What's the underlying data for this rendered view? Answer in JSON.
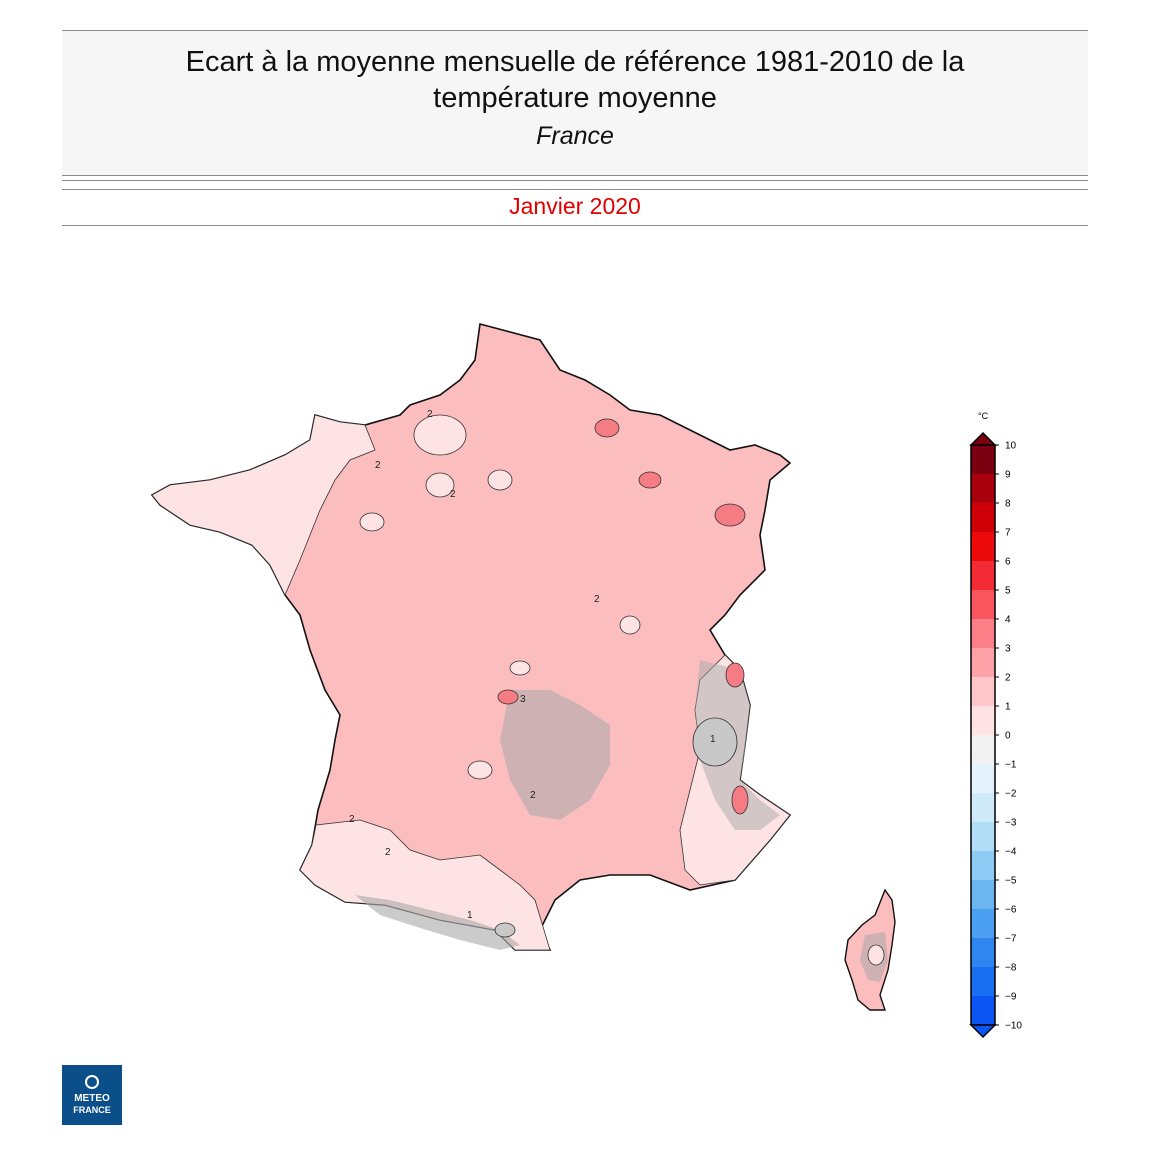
{
  "header": {
    "title_line1": "Ecart à la moyenne mensuelle de référence 1981-2010 de la",
    "title_line2": "température moyenne",
    "region": "France"
  },
  "period": "Janvier 2020",
  "legend": {
    "unit": "°C",
    "min": -10,
    "max": 10,
    "ticks": [
      "10",
      "9",
      "8",
      "7",
      "6",
      "5",
      "4",
      "3",
      "2",
      "1",
      "0",
      "−1",
      "−2",
      "−3",
      "−4",
      "−5",
      "−6",
      "−7",
      "−8",
      "−9",
      "−10"
    ],
    "colors": [
      "#7a0010",
      "#a8000c",
      "#cf0008",
      "#ec0a0a",
      "#f22b35",
      "#f8555e",
      "#fb7f86",
      "#fda3a7",
      "#ffc7c9",
      "#ffe3e4",
      "#f2f2f2",
      "#e4f2fb",
      "#cfeaf9",
      "#b1ddf7",
      "#8fccf5",
      "#6cb6f2",
      "#4b9ff0",
      "#2f86ee",
      "#1a6ff0",
      "#0a55f4"
    ]
  },
  "map": {
    "contour_labels": [
      "2",
      "2",
      "2",
      "2",
      "2",
      "3",
      "2",
      "2",
      "1",
      "1"
    ],
    "colors": {
      "anomaly_2_3": "#fbbdbe",
      "anomaly_1_2": "#fde3e4",
      "relief": "#a9a9a9",
      "hot_spot": "#f47c82"
    }
  },
  "logo": {
    "line1": "METEO",
    "line2": "FRANCE"
  }
}
